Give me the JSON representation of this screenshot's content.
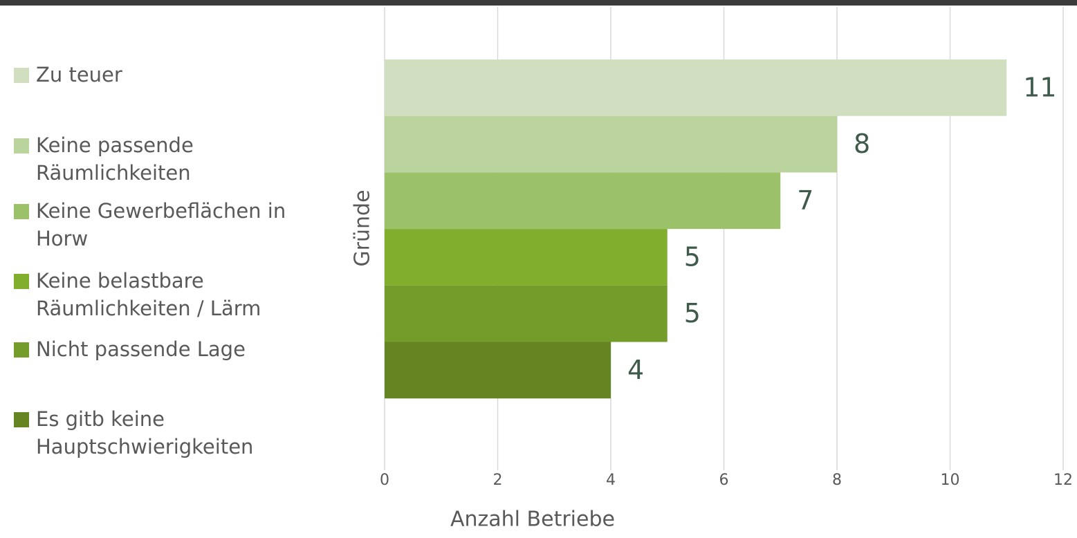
{
  "chart_data": {
    "type": "bar",
    "orientation": "horizontal",
    "x_label": "Anzahl Betriebe",
    "y_label": "Gründe",
    "series": [
      {
        "name": "Zu teuer",
        "color": "#d1dfc0",
        "values": [
          11
        ]
      },
      {
        "name": "Keine passende Räumlichkeiten",
        "color": "#bbd49e",
        "values": [
          8
        ]
      },
      {
        "name": "Keine Gewerbeflächen in Horw",
        "color": "#9bc268",
        "values": [
          7
        ]
      },
      {
        "name": "Keine belastbare Räumlichkeiten / Lärm",
        "color": "#82ae2e",
        "values": [
          5
        ]
      },
      {
        "name": "Nicht passende Lage",
        "color": "#739c2a",
        "values": [
          5
        ]
      },
      {
        "name": "Es gitb keine Hauptschwierigkeiten",
        "color": "#648522",
        "values": [
          4
        ]
      }
    ],
    "xlim": [
      0,
      12
    ],
    "xticks": [
      0,
      2,
      4,
      6,
      8,
      10,
      12
    ],
    "grid": true,
    "legend": "left"
  }
}
